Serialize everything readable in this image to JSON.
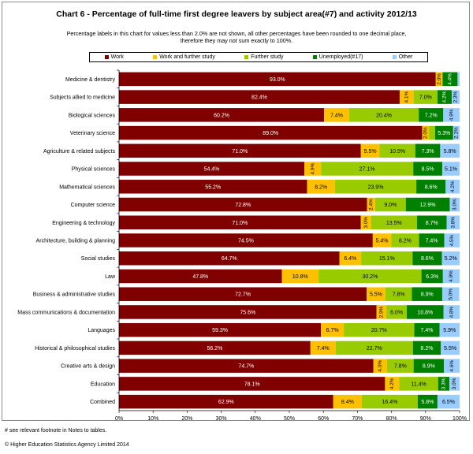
{
  "header": {
    "title": "Chart 6 - Percentage of full-time first  degree leavers by subject  area(#7) and activity 2012/13",
    "subtitle_line1": "Percentage labels in this chart for values less than 2.0% are not shown, all other percentages have been rounded to one decimal place,",
    "subtitle_line2": "therefore they may not sum exactly to 100%."
  },
  "footer": {
    "footnote": "# see relevant footnote in Notes to tables.",
    "copyright": "© Higher Education Statistics Agency Limited 2014"
  },
  "chart_data": {
    "type": "bar",
    "orientation": "horizontal",
    "stacked": true,
    "title": "Chart 6 - Percentage of full-time first  degree leavers by subject  area(#7) and activity 2012/13",
    "categories": [
      "Medicine & dentistry",
      "Subjects allied to medicine",
      "Biological sciences",
      "Veterinary science",
      "Agriculture & related subjects",
      "Physical sciences",
      "Mathematical sciences",
      "Computer science",
      "Engineering & technology",
      "Architecture, building & planning",
      "Social studies",
      "Law",
      "Business & administrative studies",
      "Mass communications & documentation",
      "Languages",
      "Historical & philosophical studies",
      "Creative arts & design",
      "Education",
      "Combined"
    ],
    "series": [
      {
        "name": "Work",
        "color": "#800000",
        "values": [
          93.0,
          82.4,
          60.2,
          89.0,
          71.0,
          54.4,
          55.2,
          72.8,
          71.0,
          74.5,
          64.7,
          47.8,
          72.7,
          75.6,
          59.3,
          56.2,
          74.7,
          78.1,
          62.9
        ]
      },
      {
        "name": "Work and further study",
        "color": "#ffc000",
        "values": [
          2.0,
          4.1,
          7.4,
          2.0,
          5.5,
          4.9,
          8.2,
          2.4,
          3.0,
          5.4,
          6.4,
          10.8,
          5.5,
          2.9,
          6.7,
          7.4,
          4.0,
          4.2,
          8.4
        ]
      },
      {
        "name": "Further study",
        "color": "#99cc00",
        "values": [
          0.0,
          7.0,
          20.4,
          1.8,
          10.5,
          27.1,
          23.9,
          9.0,
          13.5,
          8.2,
          15.1,
          30.2,
          7.8,
          6.0,
          20.7,
          22.7,
          7.8,
          11.4,
          16.4
        ]
      },
      {
        "name": "Unemployed(#17)",
        "color": "#008000",
        "values": [
          4.4,
          4.2,
          7.2,
          5.3,
          7.3,
          8.5,
          8.6,
          12.9,
          8.7,
          7.4,
          8.6,
          6.3,
          8.9,
          10.8,
          7.4,
          8.2,
          8.9,
          3.3,
          5.8
        ]
      },
      {
        "name": "Other",
        "color": "#99ccff",
        "values": [
          0.6,
          2.3,
          4.9,
          2.1,
          5.8,
          5.1,
          4.2,
          3.0,
          3.8,
          4.5,
          5.2,
          4.9,
          5.0,
          4.8,
          5.9,
          5.5,
          4.6,
          3.0,
          6.5
        ]
      }
    ],
    "xlim": [
      0,
      100
    ],
    "xticks": [
      "0%",
      "10%",
      "20%",
      "30%",
      "40%",
      "50%",
      "60%",
      "70%",
      "80%",
      "90%",
      "100%"
    ],
    "label_threshold": 2.0,
    "legend_position": "top",
    "grid": false
  }
}
